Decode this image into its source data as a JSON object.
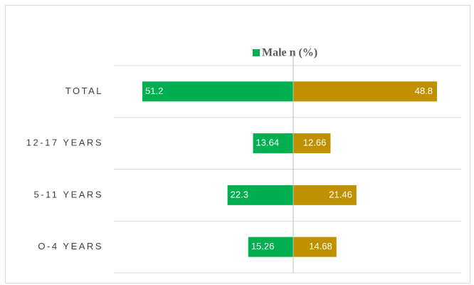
{
  "chart_data": {
    "type": "butterfly",
    "categories": [
      "TOTAL",
      "12-17 YEARS",
      "5-11 YEARS",
      "O-4 YEARS"
    ],
    "series": [
      {
        "name": "Male n (%)",
        "color": "#00b050",
        "values": [
          51.2,
          13.64,
          22.3,
          15.26
        ]
      },
      {
        "color": "#bf9000",
        "values": [
          48.8,
          12.66,
          21.46,
          14.68
        ]
      }
    ],
    "grid": true
  }
}
